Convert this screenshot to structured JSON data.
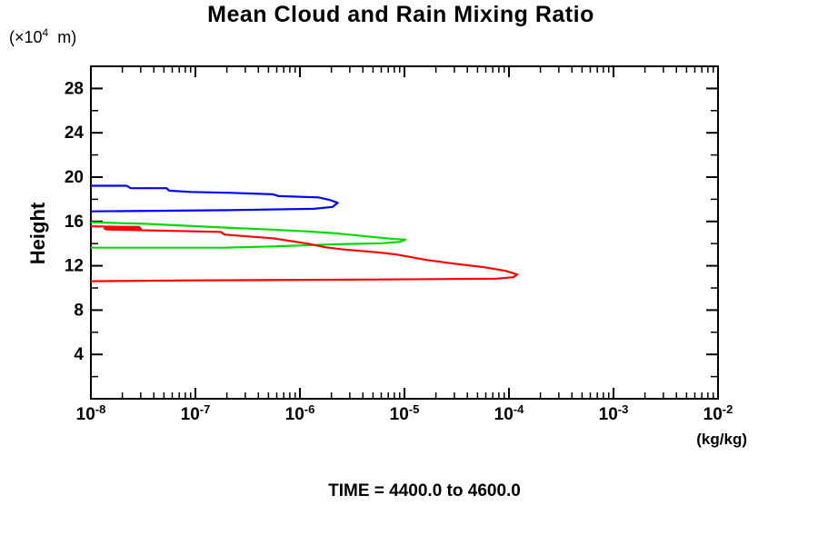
{
  "title": "Mean Cloud and Rain Mixing Ratio",
  "caption": "TIME = 4400.0 to 4600.0",
  "y_axis": {
    "unit_prefix": "(×10",
    "unit_exponent": "4",
    "unit_suffix": "  m)",
    "title": "Height",
    "major_ticks": [
      4,
      8,
      12,
      16,
      20,
      24,
      28
    ],
    "minor_ticks": [
      2,
      6,
      10,
      14,
      18,
      22,
      26
    ],
    "range": [
      0,
      30
    ]
  },
  "x_axis": {
    "scale": "log10",
    "tick_exponents": [
      -8,
      -7,
      -6,
      -5,
      -4,
      -3,
      -2
    ],
    "minor_mantissas": [
      2,
      3,
      4,
      5,
      6,
      7,
      8,
      9
    ],
    "unit": "(kg/kg)"
  },
  "colors": {
    "axis": "#000000",
    "blue_series": "#0000ff",
    "green_series": "#00dc00",
    "red_series": "#ff0000"
  },
  "chart_data": {
    "type": "line",
    "title": "Mean Cloud and Rain Mixing Ratio",
    "xlabel": "(kg/kg)",
    "ylabel": "Height (×10⁴ m)",
    "xscale": "log",
    "xlim": [
      1e-08,
      0.01
    ],
    "ylim": [
      0,
      30
    ],
    "grid": false,
    "legend": "none",
    "annotation": "TIME = 4400.0 to 4600.0",
    "series": [
      {
        "name": "blue-profile",
        "color": "#0000ff",
        "points": [
          [
            1e-08,
            19.22
          ],
          [
            2.2e-08,
            19.22
          ],
          [
            2.4e-08,
            19.0
          ],
          [
            5.3e-08,
            19.0
          ],
          [
            5.6e-08,
            18.78
          ],
          [
            9e-08,
            18.66
          ],
          [
            2.2e-07,
            18.58
          ],
          [
            5.5e-07,
            18.45
          ],
          [
            6.3e-07,
            18.29
          ],
          [
            1.5e-06,
            18.17
          ],
          [
            1.9e-06,
            17.96
          ],
          [
            2.3e-06,
            17.68
          ],
          [
            2.05e-06,
            17.31
          ],
          [
            1.35e-06,
            17.14
          ],
          [
            2e-07,
            17.02
          ],
          [
            1e-08,
            16.91
          ]
        ]
      },
      {
        "name": "green-profile",
        "color": "#00dc00",
        "points": [
          [
            1e-08,
            15.93
          ],
          [
            3.3e-08,
            15.79
          ],
          [
            2.2e-07,
            15.42
          ],
          [
            5.5e-07,
            15.26
          ],
          [
            1.2e-06,
            15.1
          ],
          [
            2.2e-06,
            14.93
          ],
          [
            5.3e-06,
            14.57
          ],
          [
            7.4e-06,
            14.44
          ],
          [
            1.02e-05,
            14.36
          ],
          [
            9.1e-06,
            14.16
          ],
          [
            6.1e-06,
            14.03
          ],
          [
            2.2e-06,
            13.94
          ],
          [
            5.5e-07,
            13.75
          ],
          [
            2e-07,
            13.64
          ],
          [
            1e-08,
            13.63
          ]
        ]
      },
      {
        "name": "red-profile",
        "color": "#ff0000",
        "points": [
          [
            1e-08,
            15.56
          ],
          [
            2.9e-08,
            15.5
          ],
          [
            3e-08,
            15.32
          ],
          [
            1.35e-08,
            15.36
          ],
          [
            1.4e-08,
            15.28
          ],
          [
            1.75e-07,
            15.06
          ],
          [
            1.9e-07,
            14.81
          ],
          [
            5.5e-07,
            14.48
          ],
          [
            1.2e-06,
            13.99
          ],
          [
            1.75e-06,
            13.67
          ],
          [
            2.45e-06,
            13.5
          ],
          [
            3.9e-06,
            13.34
          ],
          [
            6.1e-06,
            13.17
          ],
          [
            8.5e-06,
            13.01
          ],
          [
            1.65e-05,
            12.52
          ],
          [
            3e-05,
            12.19
          ],
          [
            5.8e-05,
            11.87
          ],
          [
            9.3e-05,
            11.54
          ],
          [
            0.00012,
            11.21
          ],
          [
            0.00011,
            10.97
          ],
          [
            7.5e-05,
            10.84
          ],
          [
            6.1e-06,
            10.76
          ],
          [
            9.1e-08,
            10.68
          ],
          [
            1e-08,
            10.61
          ]
        ]
      }
    ]
  }
}
